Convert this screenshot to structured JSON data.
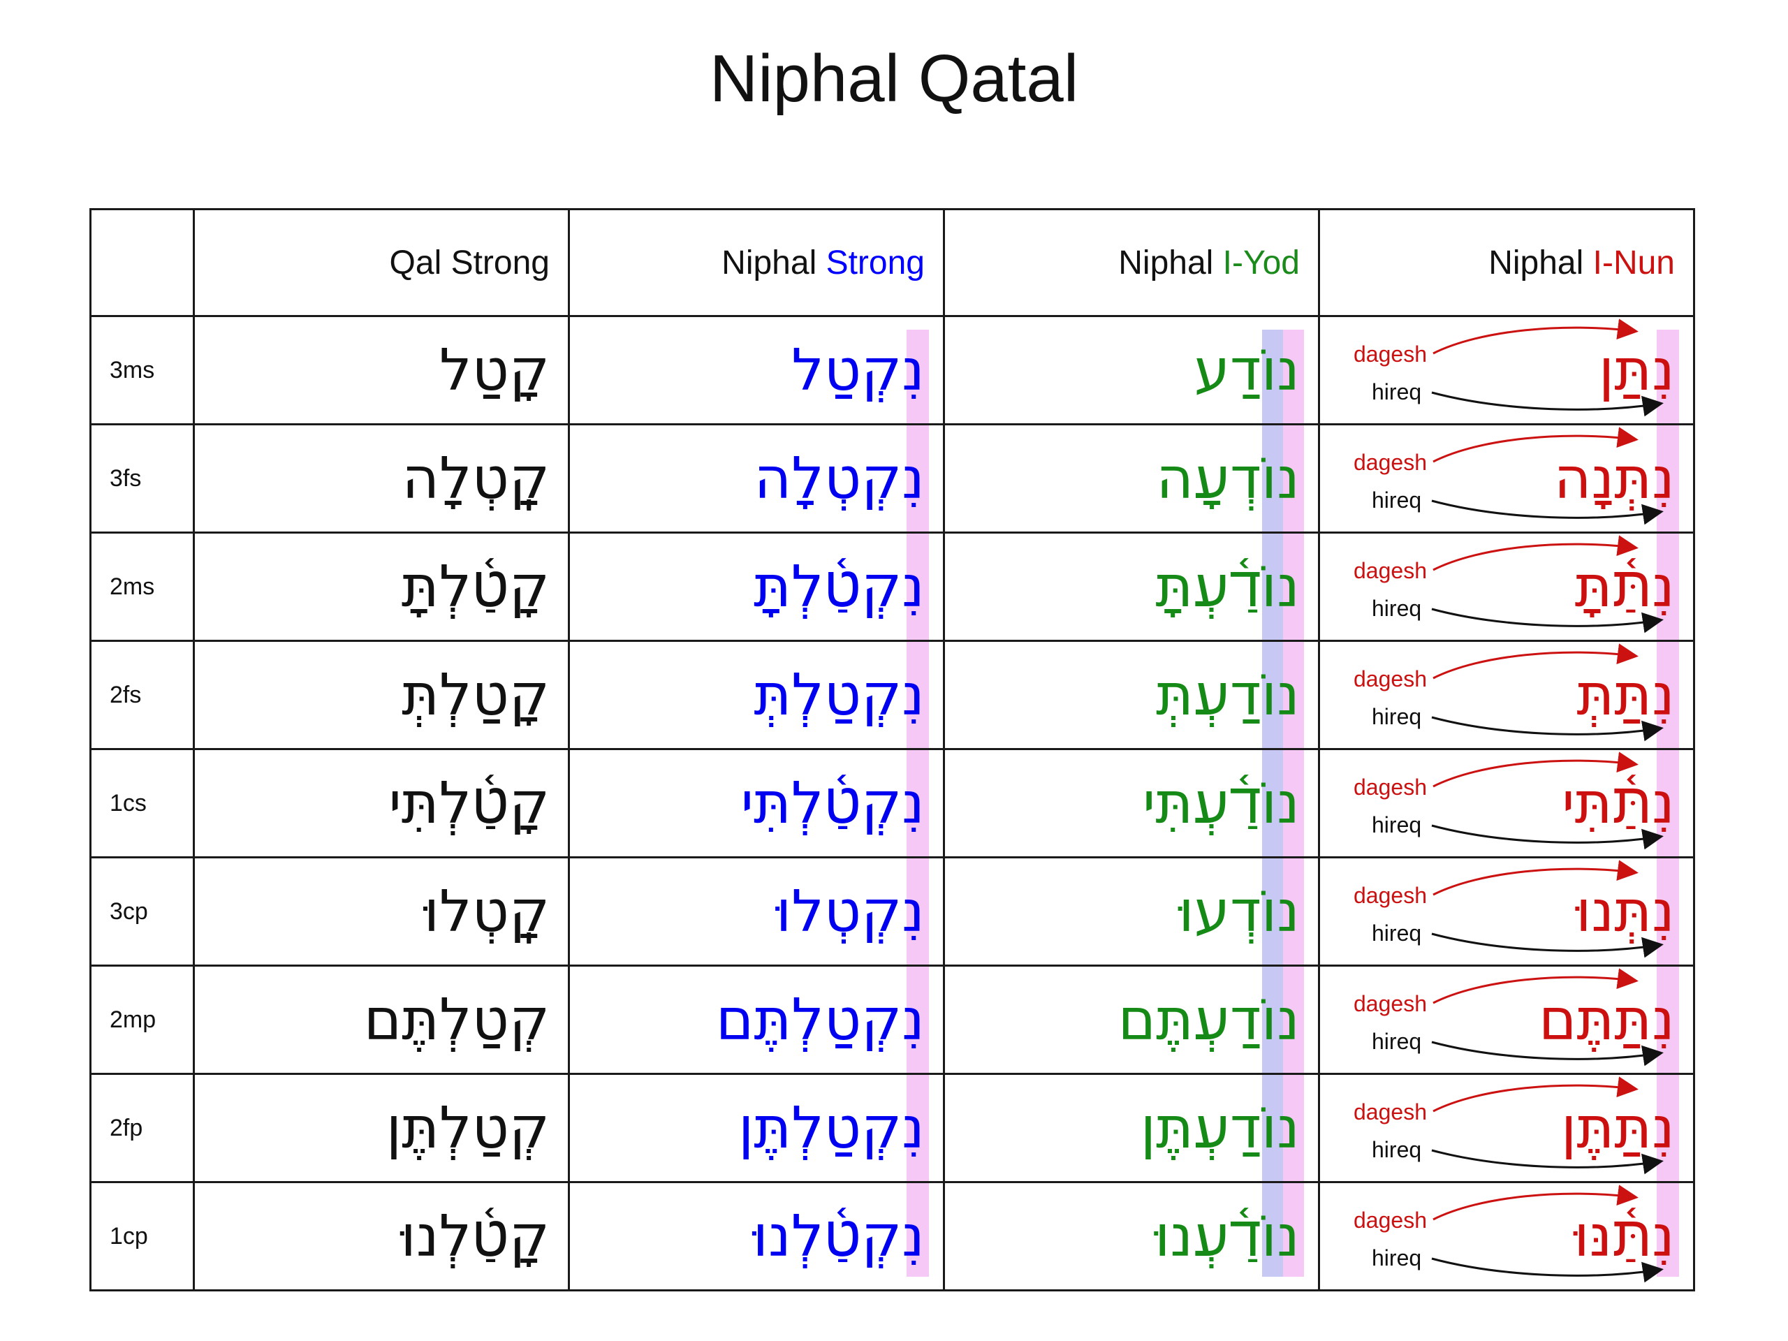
{
  "title": "Niphal Qatal",
  "header": {
    "corner": "",
    "qal": "Qal Strong",
    "niphal_strong": {
      "prefix": "Niphal ",
      "suffix": "Strong"
    },
    "niphal_iyod": {
      "prefix": "Niphal ",
      "suffix": "I-Yod"
    },
    "niphal_inun": {
      "prefix": "Niphal ",
      "suffix": "I-Nun"
    }
  },
  "annotations": {
    "top": "dagesh",
    "bottom": "hireq"
  },
  "colors": {
    "strong": "#0000ff",
    "iyod": "#1a8a1a",
    "inun": "#cc1111",
    "pink_band": "#f5c8f5",
    "lavender_band": "#c8c8f5",
    "dagesh_arrow": "#cc1111",
    "hireq_arrow": "#111111"
  },
  "rows": [
    {
      "label": "3ms",
      "qal": "קָטַל",
      "niphal_strong": "נִקְטַל",
      "niphal_iyod": "נוֹדַע",
      "niphal_inun": "נִתַּן"
    },
    {
      "label": "3fs",
      "qal": "קָֽטְלָה",
      "niphal_strong": "נִקְטְלָה",
      "niphal_iyod": "נוֹדְעָה",
      "niphal_inun": "נִתְּנָה"
    },
    {
      "label": "2ms",
      "qal": "קָטַ֫לְתָּ",
      "niphal_strong": "נִקְטַ֫לְתָּ",
      "niphal_iyod": "נוֹדַ֫עְתָּ",
      "niphal_inun": "נִתַּ֫תָּ"
    },
    {
      "label": "2fs",
      "qal": "קָטַלְתְּ",
      "niphal_strong": "נִקְטַלְתְּ",
      "niphal_iyod": "נוֹדַעְתְּ",
      "niphal_inun": "נִתַּתְּ"
    },
    {
      "label": "1cs",
      "qal": "קָטַ֫לְתִּי",
      "niphal_strong": "נִקְטַ֫לְתִּי",
      "niphal_iyod": "נוֹדַ֫עְתִּי",
      "niphal_inun": "נִתַּ֫תִּי"
    },
    {
      "label": "3cp",
      "qal": "קָֽטְלוּ",
      "niphal_strong": "נִקְטְלוּ",
      "niphal_iyod": "נוֹדְעוּ",
      "niphal_inun": "נִתְּנוּ"
    },
    {
      "label": "2mp",
      "qal": "קְטַלְתֶּם",
      "niphal_strong": "נִקְטַלְתֶּם",
      "niphal_iyod": "נוֹדַעְתֶּם",
      "niphal_inun": "נִתַּתֶּם"
    },
    {
      "label": "2fp",
      "qal": "קְטַלְתֶּן",
      "niphal_strong": "נִקְטַלְתֶּן",
      "niphal_iyod": "נוֹדַעְתֶּן",
      "niphal_inun": "נִתַּתֶּן"
    },
    {
      "label": "1cp",
      "qal": "קָטַ֫לְנוּ",
      "niphal_strong": "נִקְטַ֫לְנוּ",
      "niphal_iyod": "נוֹדַ֫עְנוּ",
      "niphal_inun": "נִתַּ֫נּוּ"
    }
  ]
}
